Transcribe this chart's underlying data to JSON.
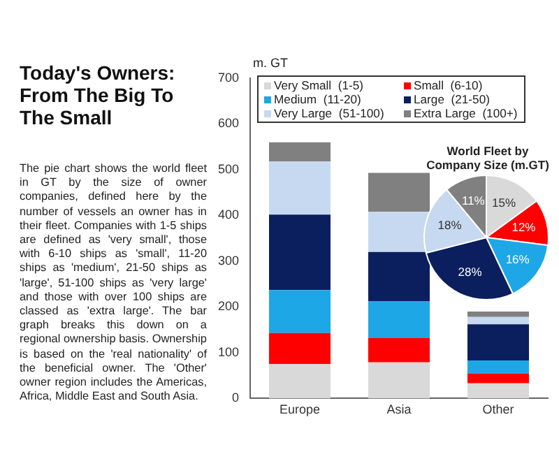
{
  "chart_data": [
    {
      "type": "other",
      "title": "Today's Owners: From The Big To The Small",
      "annotations": [
        "The pie chart shows the world fleet in GT by the size of owner companies, defined here by the number of vessels an owner has in their fleet. Companies with 1-5 ships are defined as 'very small', those with 6-10 ships as 'small', 11-20 ships as 'medium', 21-50 ships as 'large', 51-100 ships as 'very large' and those with over 100 ships are classed as 'extra large'. The bar graph breaks this down on a regional ownership basis. Ownership is based on the 'real nationality' of the beneficial owner. The 'Other' owner region includes the Americas, Africa, Middle East and South Asia."
      ]
    },
    {
      "type": "bar",
      "stacked": true,
      "ylabel": "m. GT",
      "categories": [
        "Europe",
        "Asia",
        "Other"
      ],
      "ylim": [
        0,
        700
      ],
      "yticks": [
        0,
        100,
        200,
        300,
        400,
        500,
        600,
        700
      ],
      "grid": false,
      "legend": "top",
      "series": [
        {
          "name": "Very Small  (1-5)",
          "color": "#d9d9d9",
          "values": [
            75,
            79,
            33
          ]
        },
        {
          "name": "Small  (6-10)",
          "color": "#ff0000",
          "values": [
            68,
            53,
            22
          ]
        },
        {
          "name": "Medium  (11-20)",
          "color": "#1ea7e6",
          "values": [
            94,
            81,
            28
          ]
        },
        {
          "name": "Large  (21-50)",
          "color": "#0b1f5e",
          "values": [
            165,
            107,
            79
          ]
        },
        {
          "name": "Very Large  (51-100)",
          "color": "#c6d9f0",
          "values": [
            116,
            88,
            16
          ]
        },
        {
          "name": "Extra Large  (100+)",
          "color": "#808080",
          "values": [
            42,
            85,
            12
          ]
        }
      ]
    },
    {
      "type": "pie",
      "title": "World Fleet by Company Size (m.GT)",
      "categories": [
        null,
        null,
        null,
        null,
        null,
        null
      ],
      "values": [
        15,
        12,
        16,
        28,
        18,
        11
      ],
      "colors": [
        "#d9d9d9",
        "#ff0000",
        "#1ea7e6",
        "#0b1f5e",
        "#c6d9f0",
        "#808080"
      ],
      "value_labels": [
        "15%",
        "12%",
        "16%",
        "28%",
        "18%",
        "11%"
      ]
    }
  ]
}
